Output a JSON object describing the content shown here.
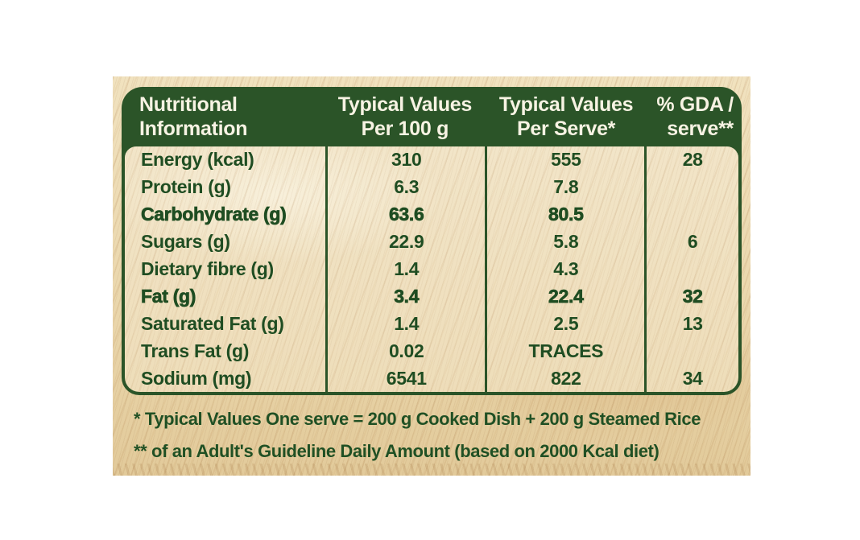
{
  "table": {
    "headers": [
      {
        "line1": "Nutritional",
        "line2": "Information"
      },
      {
        "line1": "Typical Values",
        "line2": "Per 100 g"
      },
      {
        "line1": "Typical Values",
        "line2": "Per Serve*"
      },
      {
        "line1": "% GDA /",
        "line2": "serve**"
      }
    ],
    "rows": [
      {
        "label": "Energy (kcal)",
        "per100": "310",
        "serve": "555",
        "gda": "28",
        "bold": false,
        "indent": false
      },
      {
        "label": "Protein (g)",
        "per100": "6.3",
        "serve": "7.8",
        "gda": "",
        "bold": false,
        "indent": false
      },
      {
        "label": "Carbohydrate (g)",
        "per100": "63.6",
        "serve": "80.5",
        "gda": "",
        "bold": true,
        "indent": false
      },
      {
        "label": "Sugars (g)",
        "per100": "22.9",
        "serve": "5.8",
        "gda": "6",
        "bold": false,
        "indent": true
      },
      {
        "label": "Dietary fibre (g)",
        "per100": "1.4",
        "serve": "4.3",
        "gda": "",
        "bold": false,
        "indent": true
      },
      {
        "label": "Fat (g)",
        "per100": "3.4",
        "serve": "22.4",
        "gda": "32",
        "bold": true,
        "indent": false
      },
      {
        "label": "Saturated Fat (g)",
        "per100": "1.4",
        "serve": "2.5",
        "gda": "13",
        "bold": false,
        "indent": true
      },
      {
        "label": "Trans Fat (g)",
        "per100": "0.02",
        "serve": "TRACES",
        "gda": "",
        "bold": false,
        "indent": true
      },
      {
        "label": "Sodium (mg)",
        "per100": "6541",
        "serve": "822",
        "gda": "34",
        "bold": false,
        "indent": false
      }
    ]
  },
  "footnotes": [
    "* Typical Values One serve = 200 g Cooked Dish + 200 g Steamed Rice",
    "** of an Adult's Guideline Daily Amount (based on 2000 Kcal diet)"
  ],
  "colors": {
    "header_green": "#2b5428",
    "header_text_cream": "#f7f3e3",
    "body_text_green": "#1f4d22",
    "wood_tan": "#ead6ac"
  }
}
